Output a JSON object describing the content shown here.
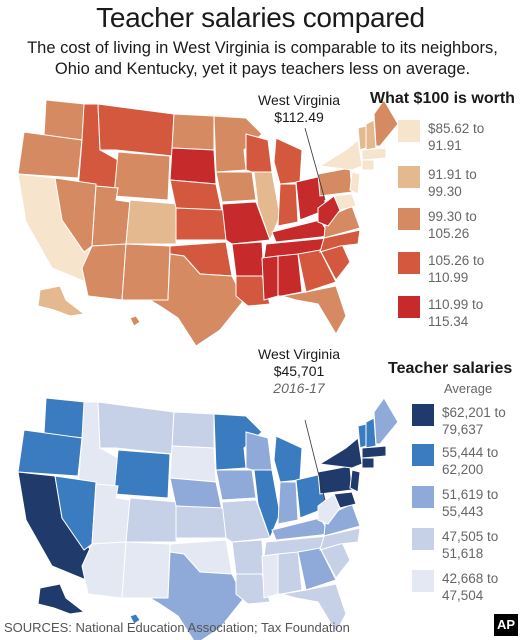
{
  "header": {
    "title": "Teacher salaries compared",
    "subtitle": "The cost of living in West Virginia is comparable to its neighbors, Ohio and Kentucky, yet it pays teachers less on average."
  },
  "cost_map": {
    "callout_state": "West Virginia",
    "callout_value": "$112.49",
    "legend_title": "What $100 is worth",
    "legend": [
      {
        "label": "$85.62 to 91.91",
        "color": "#f6e4cc"
      },
      {
        "label": "91.91 to 99.30",
        "color": "#e5b98f"
      },
      {
        "label": "99.30 to 105.26",
        "color": "#d68a62"
      },
      {
        "label": "105.26 to 110.99",
        "color": "#d4583d"
      },
      {
        "label": "110.99 to 115.34",
        "color": "#c62a2a"
      }
    ]
  },
  "salary_map": {
    "callout_state": "West Virginia",
    "callout_value": "$45,701",
    "callout_year": "2016-17",
    "legend_title": "Teacher salaries",
    "legend_subtitle": "Average",
    "legend": [
      {
        "label": "$62,201 to 79,637",
        "color": "#1f3a6b"
      },
      {
        "label": "55,444 to 62,200",
        "color": "#3b7bbf"
      },
      {
        "label": "51,619 to 55,443",
        "color": "#8faad8"
      },
      {
        "label": "47,505 to 51,618",
        "color": "#c6d0e6"
      },
      {
        "label": "42,668 to 47,504",
        "color": "#e4e8f2"
      }
    ]
  },
  "footer": {
    "sources": "SOURCES: National Education Association; Tax Foundation",
    "credit": "AP"
  }
}
